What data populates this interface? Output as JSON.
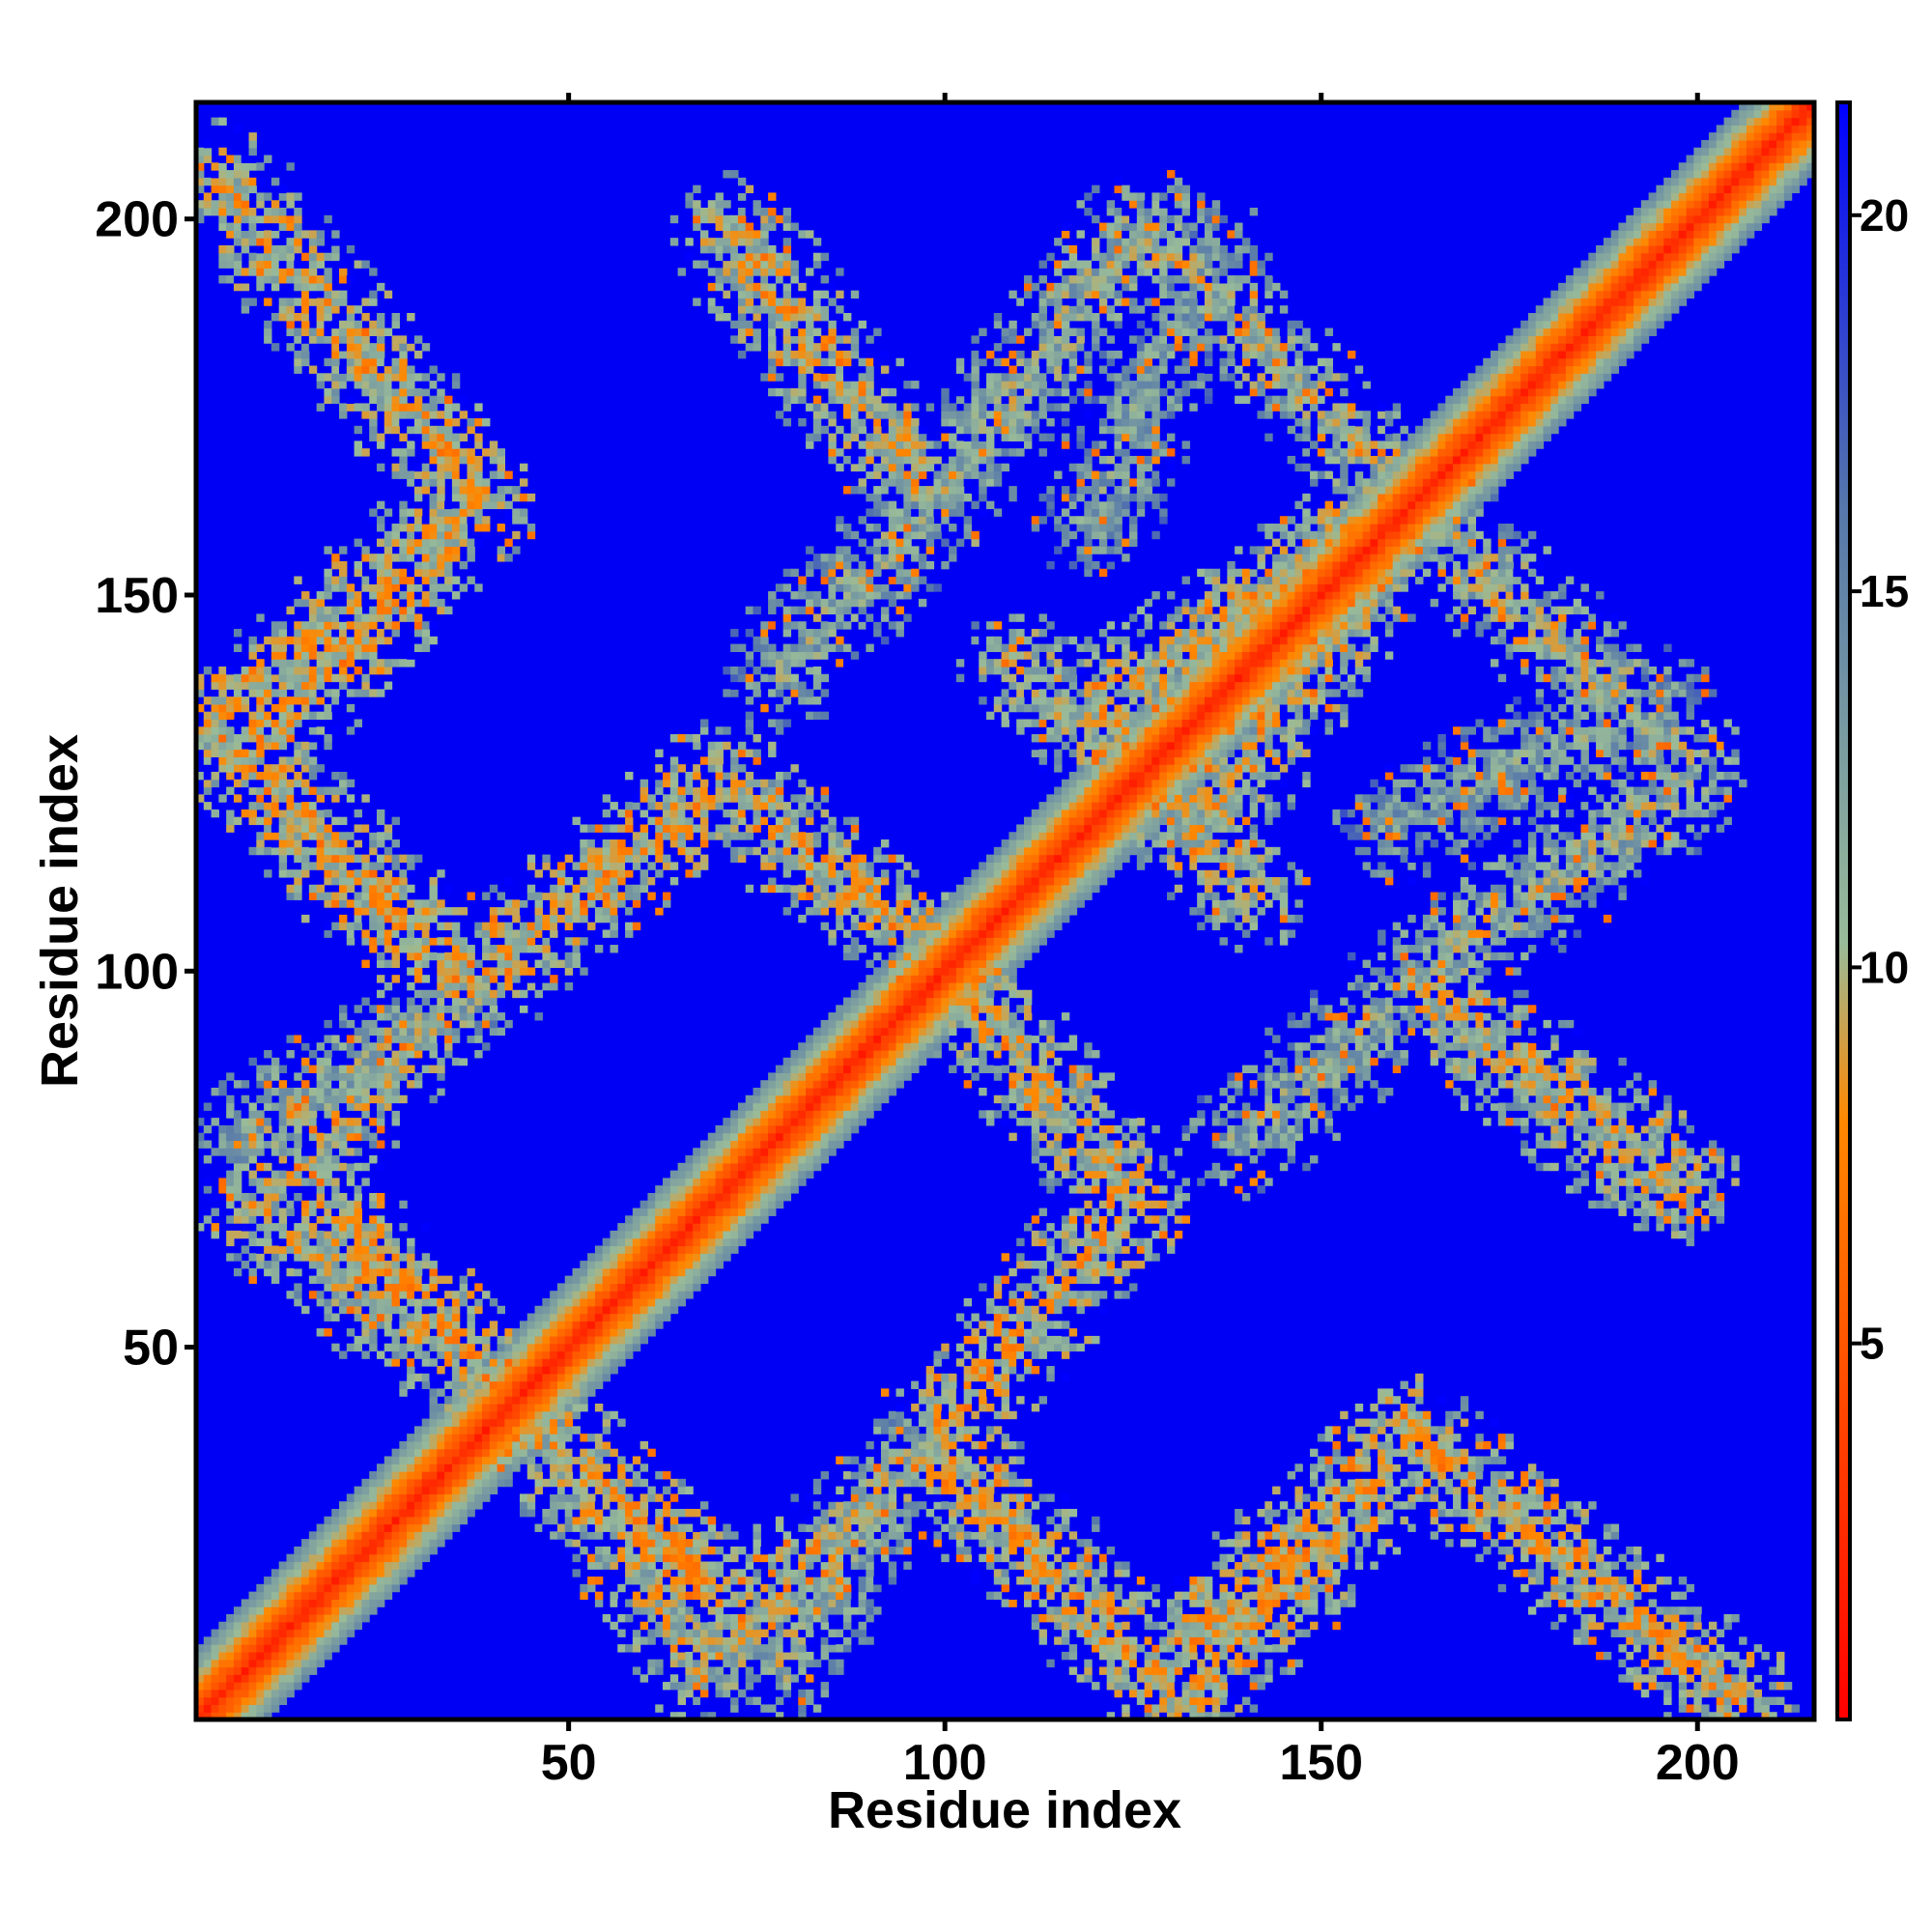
{
  "chart_data": {
    "type": "heatmap",
    "title": "",
    "xlabel": "Residue index",
    "ylabel": "Residue index",
    "xlim": [
      1,
      215
    ],
    "ylim": [
      1,
      215
    ],
    "x_ticks": [
      50,
      100,
      150,
      200
    ],
    "y_ticks": [
      50,
      100,
      150,
      200
    ],
    "colorbar": {
      "range": [
        0,
        21.5
      ],
      "ticks": [
        5,
        10,
        15,
        20
      ],
      "colors": [
        "#ff0000",
        "#ff8800",
        "#99bb99",
        "#5577aa",
        "#0000ff"
      ],
      "stops": [
        0,
        0.37,
        0.48,
        0.75,
        1.0
      ]
    },
    "background_value": 21.5,
    "background_color": "#0000f5",
    "diagonal": {
      "from": 1,
      "to": 215,
      "core_value": 2,
      "band_halfwidth": 9
    },
    "contact_bands": [
      {
        "start": [
          4,
          205
        ],
        "end": [
          38,
          162
        ],
        "value": 9.5
      },
      {
        "start": [
          38,
          162
        ],
        "end": [
          2,
          132
        ],
        "value": 9.5
      },
      {
        "start": [
          2,
          132
        ],
        "end": [
          38,
          98
        ],
        "value": 10
      },
      {
        "start": [
          38,
          98
        ],
        "end": [
          8,
          78
        ],
        "value": 11.5
      },
      {
        "start": [
          18,
          68
        ],
        "end": [
          45,
          40
        ],
        "value": 9
      },
      {
        "start": [
          45,
          40
        ],
        "end": [
          68,
          8
        ],
        "value": 10.5
      },
      {
        "start": [
          68,
          8
        ],
        "end": [
          98,
          36
        ],
        "value": 10.5
      },
      {
        "start": [
          98,
          36
        ],
        "end": [
          128,
          6
        ],
        "value": 9.5
      },
      {
        "start": [
          128,
          6
        ],
        "end": [
          162,
          38
        ],
        "value": 9.5
      },
      {
        "start": [
          162,
          38
        ],
        "end": [
          205,
          4
        ],
        "value": 10
      },
      {
        "start": [
          40,
          100
        ],
        "end": [
          70,
          125
        ],
        "value": 9.5
      },
      {
        "start": [
          70,
          125
        ],
        "end": [
          100,
          100
        ],
        "value": 10
      },
      {
        "start": [
          100,
          100
        ],
        "end": [
          125,
          70
        ],
        "value": 10
      },
      {
        "start": [
          125,
          70
        ],
        "end": [
          100,
          40
        ],
        "value": 9.5
      },
      {
        "start": [
          72,
          198
        ],
        "end": [
          98,
          162
        ],
        "value": 10
      },
      {
        "start": [
          98,
          162
        ],
        "end": [
          125,
          198
        ],
        "value": 11.5
      },
      {
        "start": [
          110,
          140
        ],
        "end": [
          135,
          120
        ],
        "value": 10.5
      },
      {
        "start": [
          135,
          120
        ],
        "end": [
          162,
          162
        ],
        "value": 10
      },
      {
        "start": [
          162,
          162
        ],
        "end": [
          198,
          128
        ],
        "value": 11
      },
      {
        "start": [
          162,
          98
        ],
        "end": [
          195,
          72
        ],
        "value": 10.5
      },
      {
        "start": [
          140,
          78
        ],
        "end": [
          162,
          98
        ],
        "value": 12
      },
      {
        "start": [
          160,
          120
        ],
        "end": [
          195,
          135
        ],
        "value": 12.5
      }
    ]
  }
}
